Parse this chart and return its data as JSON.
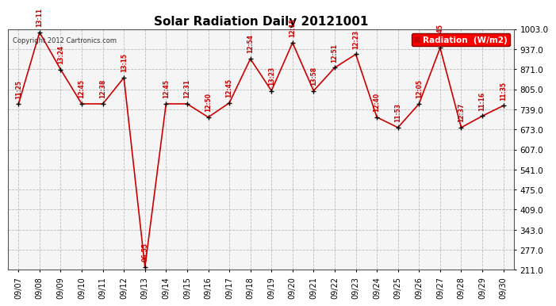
{
  "title": "Solar Radiation Daily 20121001",
  "copyright_text": "Copyright 2012 Cartronics.com",
  "legend_label": "Radiation  (W/m2)",
  "background_color": "#ffffff",
  "plot_bg_color": "#f5f5f5",
  "grid_color": "#bbbbbb",
  "line_color": "#cc0000",
  "marker_color": "#000000",
  "label_color": "#cc0000",
  "dates": [
    "09/07",
    "09/08",
    "09/09",
    "09/10",
    "09/11",
    "09/12",
    "09/13",
    "09/14",
    "09/15",
    "09/16",
    "09/17",
    "09/18",
    "09/19",
    "09/20",
    "09/21",
    "09/22",
    "09/23",
    "09/24",
    "09/25",
    "09/26",
    "09/27",
    "09/28",
    "09/29",
    "09/30"
  ],
  "values": [
    756,
    992,
    870,
    757,
    757,
    843,
    220,
    757,
    757,
    713,
    760,
    905,
    800,
    958,
    800,
    876,
    920,
    713,
    679,
    757,
    941,
    679,
    717,
    751
  ],
  "time_labels": [
    "11:25",
    "13:11",
    "13:24",
    "12:45",
    "12:38",
    "13:15",
    "06:55",
    "12:45",
    "12:31",
    "12:50",
    "12:45",
    "12:54",
    "13:23",
    "12:15",
    "13:58",
    "12:51",
    "12:23",
    "12:40",
    "11:53",
    "12:05",
    "12:45",
    "12:37",
    "11:16",
    "11:35"
  ],
  "yticks": [
    211.0,
    277.0,
    343.0,
    409.0,
    475.0,
    541.0,
    607.0,
    673.0,
    739.0,
    805.0,
    871.0,
    937.0,
    1003.0
  ],
  "ymin": 211.0,
  "ymax": 1003.0
}
